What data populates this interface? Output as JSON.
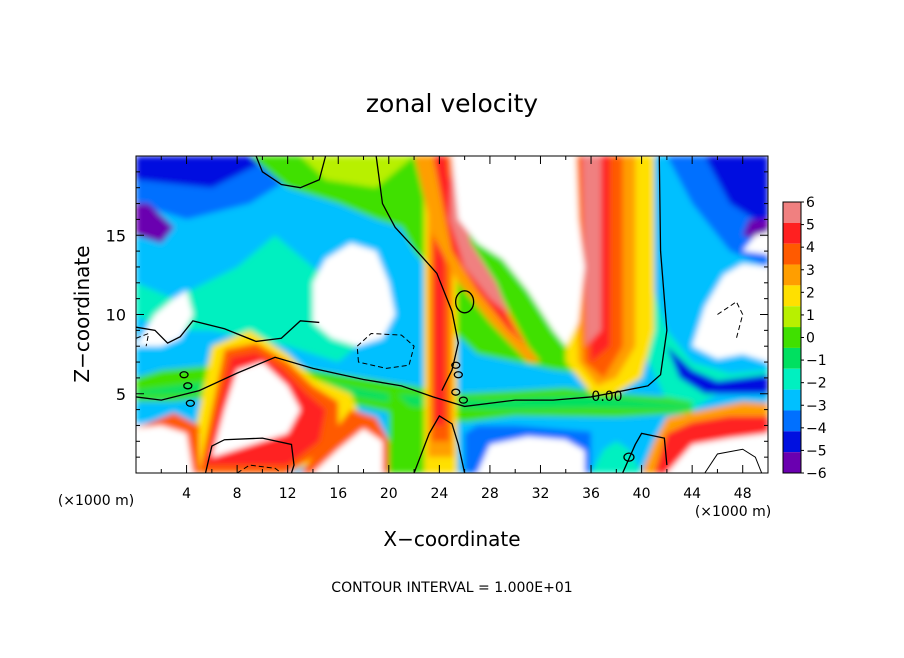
{
  "chart_data": {
    "type": "heatmap",
    "title": "zonal velocity",
    "xlabel": "X−coordinate",
    "ylabel": "Z−coordinate",
    "x_unit_left": "(×1000 m)",
    "x_unit_right": "(×1000 m)",
    "footer": "CONTOUR INTERVAL = 1.000E+01",
    "contour_label": "0.00",
    "xlim": [
      0,
      50
    ],
    "ylim": [
      0,
      20
    ],
    "x_ticks": [
      4,
      8,
      12,
      16,
      20,
      24,
      28,
      32,
      36,
      40,
      44,
      48
    ],
    "x_tick_labels": [
      "4",
      "8",
      "12",
      "16",
      "20",
      "24",
      "28",
      "32",
      "36",
      "40",
      "44",
      "48"
    ],
    "y_ticks": [
      5,
      10,
      15
    ],
    "y_tick_labels": [
      "5",
      "10",
      "15"
    ],
    "colorbar": {
      "levels": [
        6,
        5,
        4,
        3,
        2,
        1,
        0,
        -1,
        -2,
        -3,
        -4,
        -5,
        -6
      ],
      "labels": [
        "6",
        "5",
        "4",
        "3",
        "2",
        "1",
        "0",
        "−1",
        "−2",
        "−3",
        "−4",
        "−5",
        "−6"
      ],
      "colors": [
        "#f08080",
        "#ff2020",
        "#ff5a00",
        "#ff9e00",
        "#ffe000",
        "#b8f000",
        "#40e000",
        "#00e060",
        "#00f0c0",
        "#00c0ff",
        "#0070ff",
        "#0010e0",
        "#6a00b0"
      ]
    },
    "saturated_color": "#ffffff",
    "background_color": "#ffffff"
  }
}
